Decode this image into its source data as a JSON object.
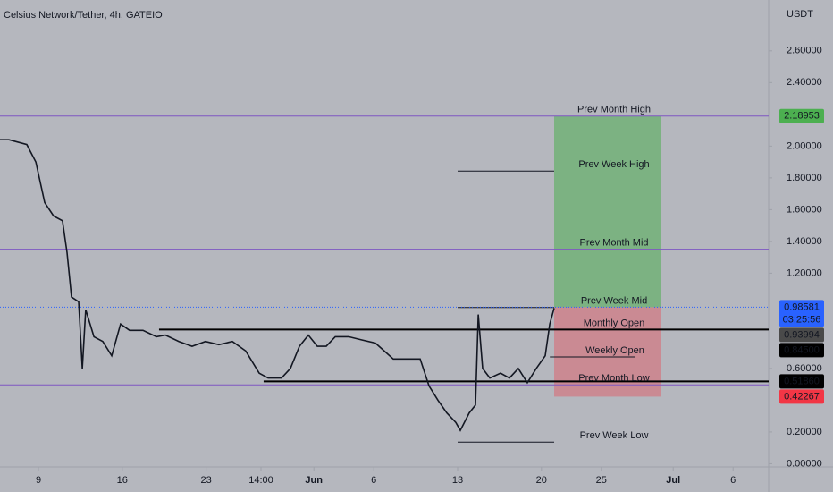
{
  "chart_data": {
    "type": "line",
    "title": "Celsius Network/Tether, 4h, GATEIO",
    "y_axis_label": "USDT",
    "xlim": [
      5.79,
      69.97
    ],
    "ylim": [
      -0.02,
      2.92
    ],
    "xticks": [
      {
        "value": 9,
        "label": "9"
      },
      {
        "value": 16,
        "label": "16"
      },
      {
        "value": 23,
        "label": "23"
      },
      {
        "value": 27.58,
        "label": "14:00"
      },
      {
        "value": 32,
        "label": "Jun"
      },
      {
        "value": 37,
        "label": "6"
      },
      {
        "value": 44,
        "label": "13"
      },
      {
        "value": 51,
        "label": "20"
      },
      {
        "value": 56,
        "label": "25"
      },
      {
        "value": 62,
        "label": "Jul"
      },
      {
        "value": 67,
        "label": "6"
      }
    ],
    "yticks": [
      {
        "value": 2.6,
        "label": "2.60000"
      },
      {
        "value": 2.4,
        "label": "2.40000"
      },
      {
        "value": 2.0,
        "label": "2.00000"
      },
      {
        "value": 1.8,
        "label": "1.80000"
      },
      {
        "value": 1.6,
        "label": "1.60000"
      },
      {
        "value": 1.4,
        "label": "1.40000"
      },
      {
        "value": 1.2,
        "label": "1.20000"
      },
      {
        "value": 0.6,
        "label": "0.60000"
      },
      {
        "value": 0.2,
        "label": "0.20000"
      },
      {
        "value": 0,
        "label": "0.00000"
      }
    ],
    "series": [
      {
        "color": "#131722",
        "x": [
          5.79,
          6.54,
          8.03,
          8.78,
          9.52,
          10.27,
          11.01,
          11.39,
          11.76,
          12.36,
          12.66,
          12.95,
          13.63,
          14.37,
          15.12,
          15.86,
          16.61,
          17.73,
          18.85,
          19.6,
          20.72,
          21.83,
          22.95,
          24.07,
          25.19,
          26.31,
          27.43,
          28.18,
          29.3,
          30.04,
          30.79,
          31.54,
          32.28,
          33.03,
          33.78,
          34.9,
          36.01,
          37.13,
          37.88,
          38.63,
          39.75,
          40.87,
          41.61,
          42.36,
          43.1,
          43.85,
          44.22,
          44.97,
          45.49,
          45.72,
          46.09,
          46.69,
          47.58,
          48.33,
          49.07,
          49.82,
          50.57,
          51.31,
          51.69,
          52.06
        ],
        "values": [
          2.04,
          2.04,
          2.01,
          1.9,
          1.645,
          1.56,
          1.53,
          1.33,
          1.05,
          1.02,
          0.6,
          0.97,
          0.8,
          0.77,
          0.68,
          0.88,
          0.84,
          0.84,
          0.8,
          0.81,
          0.77,
          0.74,
          0.77,
          0.75,
          0.77,
          0.71,
          0.57,
          0.54,
          0.54,
          0.6,
          0.74,
          0.81,
          0.74,
          0.74,
          0.8,
          0.8,
          0.78,
          0.76,
          0.71,
          0.66,
          0.66,
          0.66,
          0.49,
          0.4,
          0.32,
          0.26,
          0.21,
          0.32,
          0.37,
          0.94,
          0.6,
          0.54,
          0.57,
          0.54,
          0.6,
          0.51,
          0.6,
          0.68,
          0.88,
          0.98
        ]
      }
    ],
    "levels": [
      {
        "name": "Prev Month High",
        "value": 2.18953,
        "start": 5.79,
        "color": "#7e57c2",
        "text_color": "#6a4fb0"
      },
      {
        "name": "Prev Week High",
        "value": 1.843,
        "start": 44.0,
        "color": "#131722",
        "text_color": "#131722"
      },
      {
        "name": "Prev Month Mid",
        "value": 1.351,
        "start": 5.79,
        "color": "#7e57c2",
        "text_color": "#6f7a9e"
      },
      {
        "name": "Prev Week Mid",
        "value": 0.984,
        "start": 44.0,
        "color": "#131722",
        "text_color": "#131722"
      },
      {
        "name": "Monthly Open",
        "value": 0.845,
        "start": 19.07,
        "color": "#000000",
        "text_color": "#d9534f"
      },
      {
        "name": "Weekly Open",
        "value": 0.673,
        "start": 51.7,
        "color": "#131722",
        "text_color": "#131722"
      },
      {
        "value": 0.5186,
        "start": 27.8,
        "color": "#000000"
      },
      {
        "name": "Prev Month Low",
        "value": 0.497,
        "start": 5.79,
        "color": "#7e57c2",
        "text_color": "#d9534f"
      },
      {
        "name": "Prev Week Low",
        "value": 0.136,
        "start": 44.0,
        "color": "#131722",
        "text_color": "#131722"
      }
    ],
    "position": {
      "start": 52.06,
      "end": 61.0,
      "entry": 0.98581,
      "target": 2.18953,
      "stop": 0.42267
    },
    "price_labels": [
      {
        "value": 2.18953,
        "label": "2.18953",
        "color": "#4caf50"
      },
      {
        "value": 0.98581,
        "label": "0.98581",
        "sub": "03:25:56",
        "color": "#2962ff"
      },
      {
        "value": 0.93994,
        "label": "0.93994",
        "color": "#4a4a4a"
      },
      {
        "value": 0.845,
        "label": "0.84500",
        "color": "#000000"
      },
      {
        "value": 0.5186,
        "label": "0.51860",
        "color": "#000000"
      },
      {
        "value": 0.42267,
        "label": "0.42267",
        "color": "#f23645"
      }
    ]
  }
}
